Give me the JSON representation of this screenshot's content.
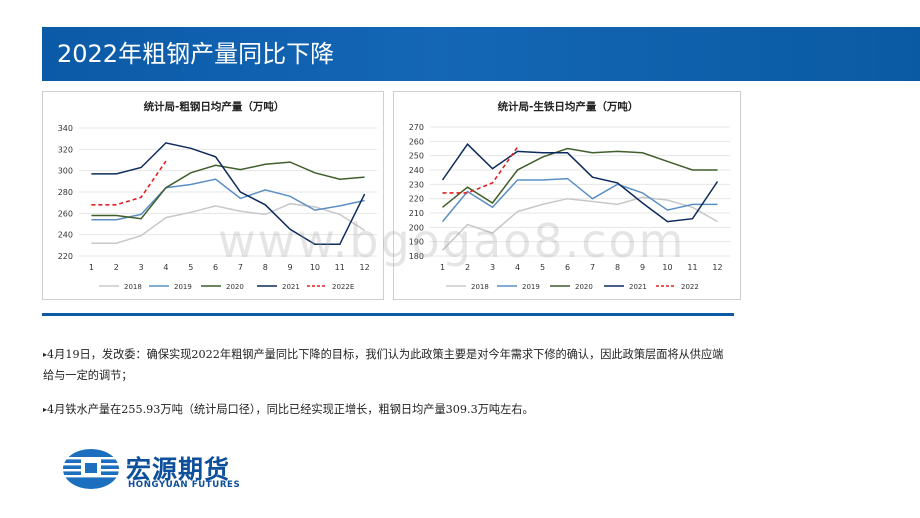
{
  "slide_title": "2022年粗钢产量同比下降",
  "watermark": "www.bgogao8.com",
  "chart_data": [
    {
      "type": "line",
      "title": "统计局-粗钢日均产量（万吨）",
      "x": [
        1,
        2,
        3,
        4,
        5,
        6,
        7,
        8,
        9,
        10,
        11,
        12
      ],
      "ylim": [
        220,
        340
      ],
      "yticks": [
        220,
        240,
        260,
        280,
        300,
        320,
        340
      ],
      "grid": true,
      "legend": "bottom",
      "series": [
        {
          "name": "2018",
          "color": "#c8c8c8",
          "dash": false,
          "values": [
            232,
            232,
            239,
            256,
            261,
            267,
            262,
            259,
            269,
            266,
            259,
            244
          ]
        },
        {
          "name": "2019",
          "color": "#5b8fc4",
          "dash": false,
          "values": [
            254,
            254,
            259,
            284,
            287,
            292,
            274,
            282,
            276,
            263,
            267,
            272
          ]
        },
        {
          "name": "2020",
          "color": "#3f5f2a",
          "dash": false,
          "values": [
            258,
            258,
            255,
            284,
            298,
            305,
            301,
            306,
            308,
            298,
            292,
            294
          ]
        },
        {
          "name": "2021",
          "color": "#0d2a5c",
          "dash": false,
          "values": [
            297,
            297,
            303,
            326,
            321,
            313,
            280,
            268,
            245,
            231,
            231,
            278
          ]
        },
        {
          "name": "2022E",
          "color": "#e02020",
          "dash": true,
          "values": [
            268,
            268,
            275,
            309,
            null,
            null,
            null,
            null,
            null,
            null,
            null,
            null
          ]
        }
      ]
    },
    {
      "type": "line",
      "title": "统计局-生铁日均产量（万吨）",
      "x": [
        1,
        2,
        3,
        4,
        5,
        6,
        7,
        8,
        9,
        10,
        11,
        12
      ],
      "ylim": [
        180,
        270
      ],
      "yticks": [
        180,
        190,
        200,
        210,
        220,
        230,
        240,
        250,
        260,
        270
      ],
      "grid": true,
      "legend": "bottom",
      "series": [
        {
          "name": "2018",
          "color": "#c8c8c8",
          "dash": false,
          "values": [
            184,
            202,
            196,
            211,
            216,
            220,
            218,
            216,
            221,
            219,
            214,
            204
          ]
        },
        {
          "name": "2019",
          "color": "#5b8fc4",
          "dash": false,
          "values": [
            204,
            225,
            214,
            233,
            233,
            234,
            220,
            230,
            224,
            212,
            216,
            216
          ]
        },
        {
          "name": "2020",
          "color": "#3f5f2a",
          "dash": false,
          "values": [
            214,
            228,
            217,
            240,
            249,
            255,
            252,
            253,
            252,
            246,
            240,
            240
          ]
        },
        {
          "name": "2021",
          "color": "#0d2a5c",
          "dash": false,
          "values": [
            233,
            258,
            241,
            253,
            252,
            252,
            235,
            231,
            217,
            204,
            206,
            232
          ]
        },
        {
          "name": "2022",
          "color": "#e02020",
          "dash": true,
          "values": [
            224,
            224,
            231,
            256,
            null,
            null,
            null,
            null,
            null,
            null,
            null,
            null
          ]
        }
      ]
    }
  ],
  "bullets": [
    {
      "mark": "▸",
      "text": "4月19日，发改委：确保实现2022年粗钢产量同比下降的目标，我们认为此政策主要是对今年需求下修的确认，因此政策层面将从供应端给与一定的调节；"
    },
    {
      "mark": "▸",
      "text": "4月铁水产量在255.93万吨（统计局口径），同比已经实现正增长，粗钢日均产量309.3万吨左右。"
    }
  ],
  "logo": {
    "cn": "宏源期货",
    "en": "HONGYUAN FUTURES"
  }
}
